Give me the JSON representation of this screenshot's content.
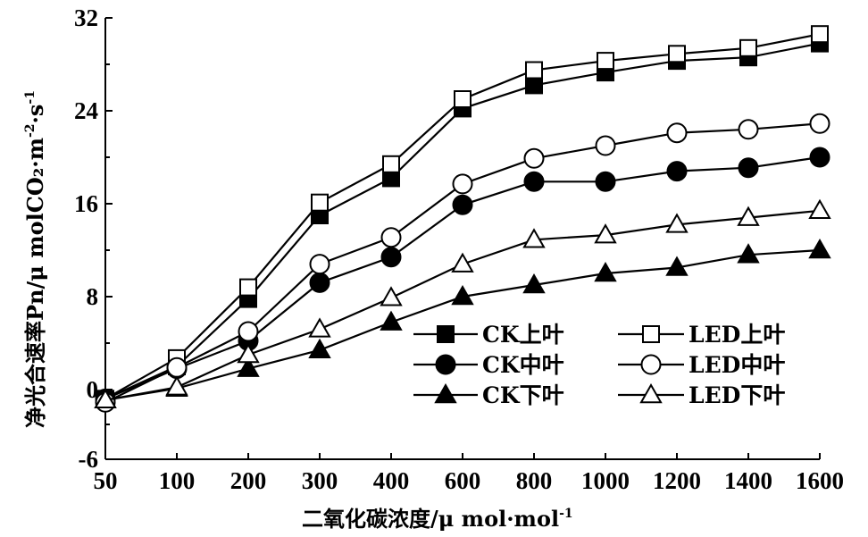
{
  "chart_data": {
    "type": "line",
    "title": "",
    "xlabel": "二氧化碳浓度/μ mol·mol",
    "xlabel_sup": "-1",
    "ylabel": "净光合速率Pn/μ molCO₂·m",
    "ylabel_sup1": "-2",
    "ylabel_mid": "·s",
    "ylabel_sup2": "-1",
    "categories": [
      "50",
      "100",
      "200",
      "300",
      "400",
      "600",
      "800",
      "1000",
      "1200",
      "1400",
      "1600"
    ],
    "y_ticks": [
      "-6",
      "0",
      "8",
      "16",
      "24",
      "32"
    ],
    "ylim": [
      -6,
      32
    ],
    "legend_position": "bottom-right",
    "series": [
      {
        "name": "CK上叶",
        "marker": "square",
        "fill": "filled",
        "values": [
          -0.8,
          2.0,
          7.8,
          15.0,
          18.2,
          24.2,
          26.2,
          27.3,
          28.3,
          28.6,
          29.8
        ]
      },
      {
        "name": "LED上叶",
        "marker": "square",
        "fill": "open",
        "values": [
          -0.8,
          2.7,
          8.8,
          16.1,
          19.4,
          25.0,
          27.5,
          28.3,
          28.9,
          29.4,
          30.6
        ]
      },
      {
        "name": "CK中叶",
        "marker": "circle",
        "fill": "filled",
        "values": [
          -0.8,
          1.8,
          4.2,
          9.2,
          11.4,
          15.9,
          17.9,
          17.9,
          18.8,
          19.1,
          20.0
        ]
      },
      {
        "name": "LED中叶",
        "marker": "circle",
        "fill": "open",
        "values": [
          -1.1,
          1.9,
          5.0,
          10.8,
          13.1,
          17.7,
          19.9,
          21.0,
          22.1,
          22.4,
          22.9
        ]
      },
      {
        "name": "CK下叶",
        "marker": "triangle",
        "fill": "filled",
        "values": [
          -0.9,
          0.1,
          1.8,
          3.4,
          5.8,
          8.0,
          9.0,
          10.0,
          10.5,
          11.6,
          12.0
        ]
      },
      {
        "name": "LED下叶",
        "marker": "triangle",
        "fill": "open",
        "values": [
          -0.9,
          0.2,
          3.0,
          5.2,
          7.9,
          10.8,
          12.9,
          13.3,
          14.2,
          14.8,
          15.4
        ]
      }
    ]
  }
}
